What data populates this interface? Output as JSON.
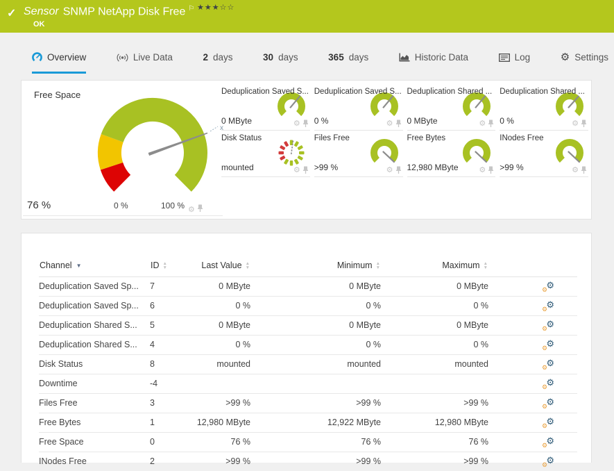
{
  "colors": {
    "brand_green": "#b4c71d",
    "gauge_green": "#a8c123",
    "status_yellow": "#f2c500",
    "status_red": "#dd0404",
    "seg_red": "#d23b3b",
    "needle_gray": "#8c8c8c",
    "accent_blue": "#1a9ad7",
    "panel_border": "#e2e2e2",
    "muted_icon": "#c6c6c6"
  },
  "header": {
    "kind_label": "Sensor",
    "title": "SNMP NetApp Disk Free",
    "status": "OK",
    "priority": {
      "filled": 3,
      "total": 5
    }
  },
  "tabs": [
    {
      "key": "overview",
      "label": "Overview",
      "icon": "gauge",
      "active": true
    },
    {
      "key": "live-data",
      "label": "Live Data",
      "icon": "live"
    },
    {
      "key": "2-days",
      "num": "2",
      "label": "days"
    },
    {
      "key": "30-days",
      "num": "30",
      "label": "days"
    },
    {
      "key": "365-days",
      "num": "365",
      "label": "days"
    },
    {
      "key": "historic-data",
      "label": "Historic Data",
      "icon": "historic"
    },
    {
      "key": "log",
      "label": "Log",
      "icon": "log"
    },
    {
      "key": "settings",
      "label": "Settings",
      "icon": "settings"
    }
  ],
  "overview": {
    "main_gauge": {
      "title": "Free Space",
      "value_label": "76 %",
      "value_percent": 76,
      "scale_min_label": "0 %",
      "scale_max_label": "100 %",
      "marker_label": "x"
    },
    "mini_channels": [
      {
        "title": "Deduplication Saved S...",
        "value": "0 MByte",
        "gauge": "needle",
        "needle_angle": 40
      },
      {
        "title": "Deduplication Saved S...",
        "value": "0 %",
        "gauge": "needle",
        "needle_angle": 40
      },
      {
        "title": "Deduplication Shared ...",
        "value": "0 MByte",
        "gauge": "needle",
        "needle_angle": 40
      },
      {
        "title": "Deduplication Shared ...",
        "value": "0 %",
        "gauge": "needle",
        "needle_angle": 42
      },
      {
        "title": "Disk Status",
        "value": "mounted",
        "gauge": "segmented",
        "needle_angle": 8
      },
      {
        "title": "Files Free",
        "value": ">99 %",
        "gauge": "needle",
        "needle_angle": 133
      },
      {
        "title": "Free Bytes",
        "value": "12,980 MByte",
        "gauge": "needle",
        "needle_angle": 133
      },
      {
        "title": "INodes Free",
        "value": ">99 %",
        "gauge": "needle",
        "needle_angle": 133
      }
    ]
  },
  "table": {
    "columns": [
      "Channel",
      "ID",
      "Last Value",
      "Minimum",
      "Maximum"
    ],
    "sort_column": "Channel",
    "rows": [
      {
        "channel": "Deduplication Saved Sp...",
        "id": "7",
        "last": "0 MByte",
        "min": "0 MByte",
        "max": "0 MByte"
      },
      {
        "channel": "Deduplication Saved Sp...",
        "id": "6",
        "last": "0 %",
        "min": "0 %",
        "max": "0 %"
      },
      {
        "channel": "Deduplication Shared S...",
        "id": "5",
        "last": "0 MByte",
        "min": "0 MByte",
        "max": "0 MByte"
      },
      {
        "channel": "Deduplication Shared S...",
        "id": "4",
        "last": "0 %",
        "min": "0 %",
        "max": "0 %"
      },
      {
        "channel": "Disk Status",
        "id": "8",
        "last": "mounted",
        "min": "mounted",
        "max": "mounted"
      },
      {
        "channel": "Downtime",
        "id": "-4",
        "last": "",
        "min": "",
        "max": ""
      },
      {
        "channel": "Files Free",
        "id": "3",
        "last": ">99 %",
        "min": ">99 %",
        "max": ">99 %"
      },
      {
        "channel": "Free Bytes",
        "id": "1",
        "last": "12,980 MByte",
        "min": "12,922 MByte",
        "max": "12,980 MByte"
      },
      {
        "channel": "Free Space",
        "id": "0",
        "last": "76 %",
        "min": "76 %",
        "max": "76 %"
      },
      {
        "channel": "INodes Free",
        "id": "2",
        "last": ">99 %",
        "min": ">99 %",
        "max": ">99 %"
      }
    ]
  }
}
